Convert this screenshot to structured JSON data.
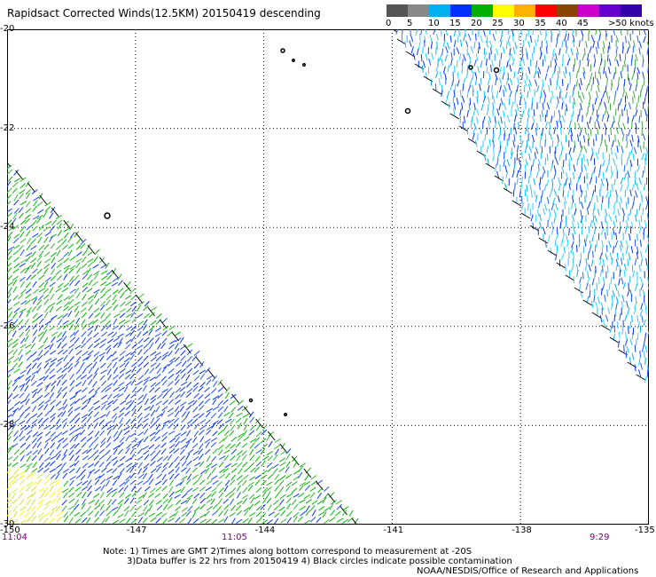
{
  "title": "Rapidsact Corrected Winds(12.5KM) 20150419 descending",
  "legend": {
    "unit": ">50 knots",
    "entries": [
      {
        "label": "0",
        "color": "#555555"
      },
      {
        "label": "5",
        "color": "#888888"
      },
      {
        "label": "10",
        "color": "#00b0f0"
      },
      {
        "label": "15",
        "color": "#0030ff"
      },
      {
        "label": "20",
        "color": "#00b000"
      },
      {
        "label": "25",
        "color": "#ffff00"
      },
      {
        "label": "30",
        "color": "#ffb000"
      },
      {
        "label": "35",
        "color": "#ff0000"
      },
      {
        "label": "40",
        "color": "#884400"
      },
      {
        "label": "45",
        "color": "#cc00cc"
      },
      {
        "label": "",
        "color": "#6600cc"
      },
      {
        "label": "",
        "color": "#3300aa"
      }
    ]
  },
  "axes": {
    "lat_labels": [
      "-20",
      "-22",
      "-24",
      "-26",
      "-28",
      "-30"
    ],
    "lon_labels": [
      "-150",
      "-147",
      "-144",
      "-141",
      "-138",
      "-135"
    ]
  },
  "time_labels": [
    "11:04",
    "11:05",
    "9:29"
  ],
  "notes": {
    "line1": "Note: 1) Times are GMT 2)Times along bottom correspond to measurement at -20S",
    "line2": "3)Data buffer is 22 hrs from 20150419 4) Black circles indicate possible contamination",
    "credit": "NOAA/NESDIS/Office of Research and Applications"
  }
}
